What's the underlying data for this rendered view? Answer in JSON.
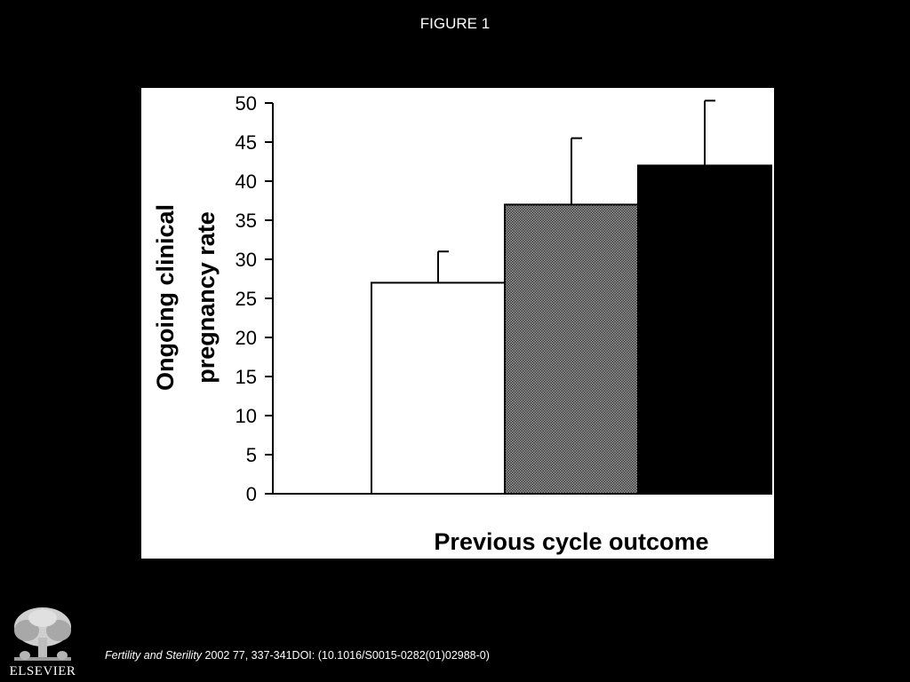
{
  "slide": {
    "title": "FIGURE 1"
  },
  "chart_data": {
    "type": "bar",
    "title": "",
    "xlabel": "Previous cycle outcome",
    "ylabel_lines": [
      "Ongoing clinical",
      "pregnancy rate"
    ],
    "ylim": [
      0,
      50
    ],
    "yticks": [
      0,
      5,
      10,
      15,
      20,
      25,
      30,
      35,
      40,
      45,
      50
    ],
    "grid": false,
    "legend": "none",
    "bars": [
      {
        "value": 27,
        "error": 4,
        "fill": "#ffffff",
        "pattern": "none"
      },
      {
        "value": 37,
        "error": 8.5,
        "fill": "#6f6f6f",
        "pattern": "dotted-gray"
      },
      {
        "value": 42,
        "error": 8.3,
        "fill": "#000000",
        "pattern": "none"
      }
    ]
  },
  "footer": {
    "publisher": "ELSEVIER",
    "logo_icon": "elsevier-tree-icon",
    "journal": "Fertility and Sterility",
    "citation_rest": " 2002 77, 337-341DOI: (10.1016/S0015-0282(01)02988-0)"
  }
}
